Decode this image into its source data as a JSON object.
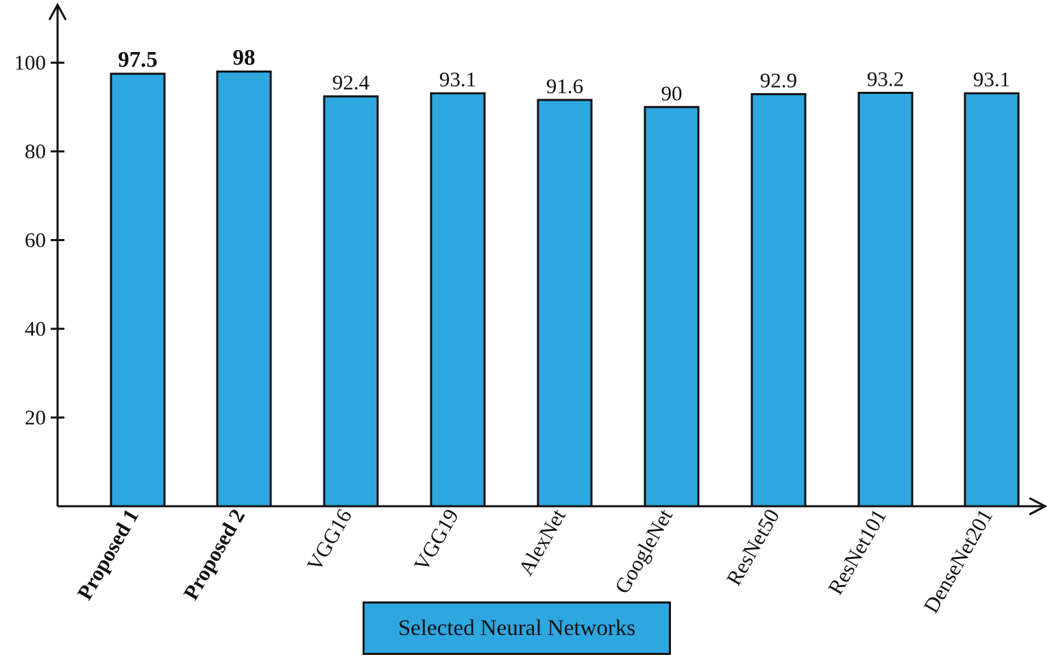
{
  "chart_data": {
    "type": "bar",
    "title": "",
    "xlabel": "",
    "ylabel": "",
    "categories": [
      "Proposed 1",
      "Proposed 2",
      "VGG16",
      "VGG19",
      "AlexNet",
      "GoogleNet",
      "ResNet50",
      "ResNet101",
      "DenseNet201"
    ],
    "values": [
      97.5,
      98,
      92.4,
      93.1,
      91.6,
      90,
      92.9,
      93.2,
      93.1
    ],
    "value_labels": [
      "97.5",
      "98",
      "92.4",
      "93.1",
      "91.6",
      "90",
      "92.9",
      "93.2",
      "93.1"
    ],
    "bold_categories": [
      "Proposed 1",
      "Proposed 2"
    ],
    "yticks": [
      20,
      40,
      60,
      80,
      100
    ],
    "ylim": [
      0,
      110
    ],
    "grid": false,
    "legend": [
      "Selected Neural Networks"
    ],
    "legend_position": "bottom-center",
    "bar_color": "#2ea6e0",
    "edge_color": "#111111"
  },
  "legend": {
    "label": "Selected Neural Networks"
  }
}
